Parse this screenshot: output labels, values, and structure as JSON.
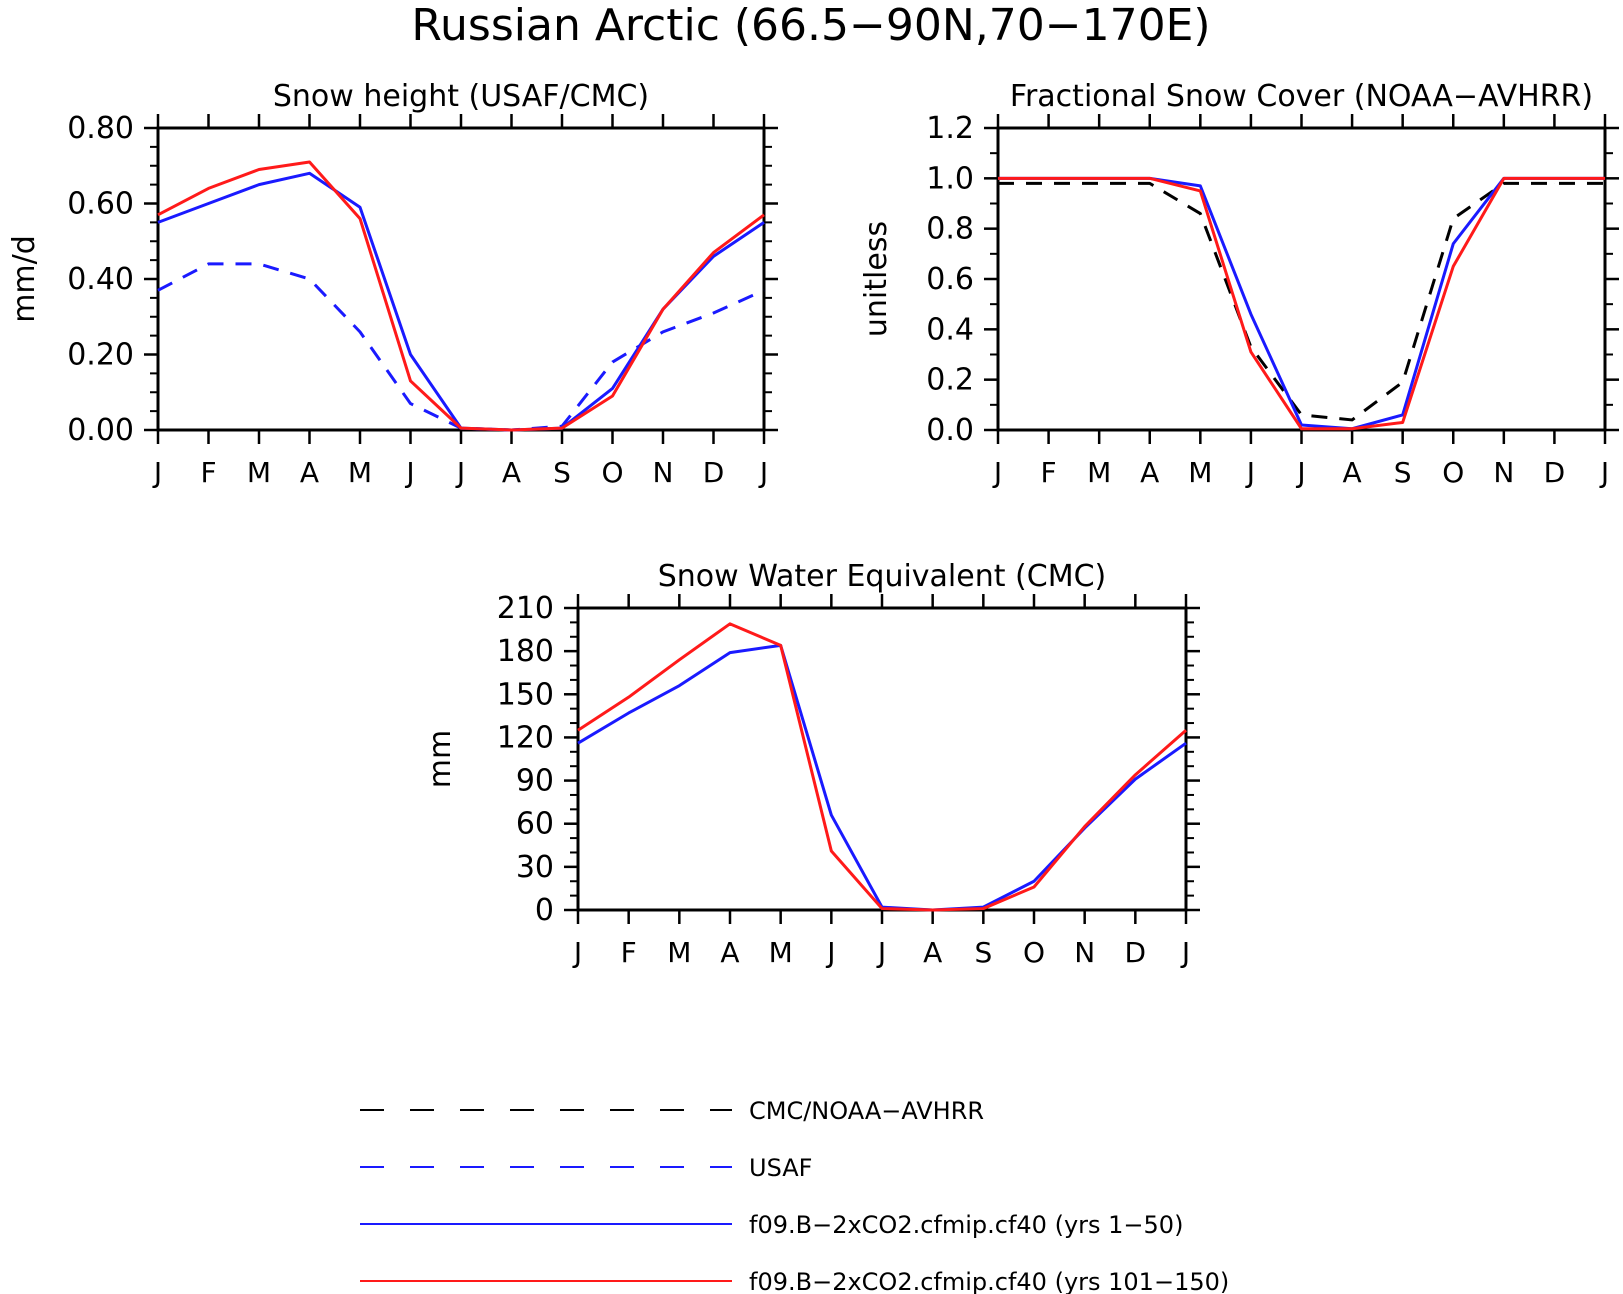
{
  "title": "Russian Arctic (66.5−90N,70−170E)",
  "colors": {
    "obs": "#000000",
    "usaf": "#1a1aff",
    "run1": "#1a1aff",
    "run2": "#ff1a1a"
  },
  "chart_data": [
    {
      "type": "line",
      "title": "Snow height (USAF/CMC)",
      "ylabel": "mm/d",
      "xlabel": "",
      "categories": [
        "J",
        "F",
        "M",
        "A",
        "M",
        "J",
        "J",
        "A",
        "S",
        "O",
        "N",
        "D",
        "J"
      ],
      "ylim": [
        0,
        0.8
      ],
      "yticks": [
        "0.00",
        "0.20",
        "0.40",
        "0.60",
        "0.80"
      ],
      "ytick_values": [
        0,
        0.2,
        0.4,
        0.6,
        0.8
      ],
      "grid": false,
      "series": [
        {
          "key": "usaf",
          "name": "USAF",
          "dashed": true,
          "values": [
            0.37,
            0.44,
            0.44,
            0.4,
            0.26,
            0.07,
            0.005,
            0.0,
            0.01,
            0.18,
            0.26,
            0.31,
            0.37
          ]
        },
        {
          "key": "run1",
          "name": "f09.B−2xCO2.cfmip.cf40 (yrs 1−50)",
          "dashed": false,
          "values": [
            0.55,
            0.6,
            0.65,
            0.68,
            0.59,
            0.2,
            0.005,
            0.0,
            0.005,
            0.11,
            0.32,
            0.46,
            0.55
          ]
        },
        {
          "key": "run2",
          "name": "f09.B−2xCO2.cfmip.cf40 (yrs 101−150)",
          "dashed": false,
          "values": [
            0.57,
            0.64,
            0.69,
            0.71,
            0.56,
            0.13,
            0.005,
            0.0,
            0.005,
            0.09,
            0.32,
            0.47,
            0.57
          ]
        }
      ]
    },
    {
      "type": "line",
      "title": "Fractional Snow Cover (NOAA−AVHRR)",
      "ylabel": "unitless",
      "xlabel": "",
      "categories": [
        "J",
        "F",
        "M",
        "A",
        "M",
        "J",
        "J",
        "A",
        "S",
        "O",
        "N",
        "D",
        "J"
      ],
      "ylim": [
        0,
        1.2
      ],
      "yticks": [
        "0.0",
        "0.2",
        "0.4",
        "0.6",
        "0.8",
        "1.0",
        "1.2"
      ],
      "ytick_values": [
        0,
        0.2,
        0.4,
        0.6,
        0.8,
        1.0,
        1.2
      ],
      "grid": false,
      "series": [
        {
          "key": "obs",
          "name": "CMC/NOAA−AVHRR",
          "dashed": true,
          "values": [
            0.98,
            0.98,
            0.98,
            0.98,
            0.86,
            0.33,
            0.06,
            0.04,
            0.19,
            0.84,
            0.98,
            0.98,
            0.98
          ]
        },
        {
          "key": "run1",
          "name": "f09.B−2xCO2.cfmip.cf40 (yrs 1−50)",
          "dashed": false,
          "values": [
            1.0,
            1.0,
            1.0,
            1.0,
            0.97,
            0.46,
            0.02,
            0.005,
            0.06,
            0.74,
            1.0,
            1.0,
            1.0
          ]
        },
        {
          "key": "run2",
          "name": "f09.B−2xCO2.cfmip.cf40 (yrs 101−150)",
          "dashed": false,
          "values": [
            1.0,
            1.0,
            1.0,
            1.0,
            0.95,
            0.31,
            0.005,
            0.005,
            0.03,
            0.65,
            1.0,
            1.0,
            1.0
          ]
        }
      ]
    },
    {
      "type": "line",
      "title": "Snow Water Equivalent (CMC)",
      "ylabel": "mm",
      "xlabel": "",
      "categories": [
        "J",
        "F",
        "M",
        "A",
        "M",
        "J",
        "J",
        "A",
        "S",
        "O",
        "N",
        "D",
        "J"
      ],
      "ylim": [
        0,
        210
      ],
      "yticks": [
        "0",
        "30",
        "60",
        "90",
        "120",
        "150",
        "180",
        "210"
      ],
      "ytick_values": [
        0,
        30,
        60,
        90,
        120,
        150,
        180,
        210
      ],
      "grid": false,
      "series": [
        {
          "key": "run1",
          "name": "f09.B−2xCO2.cfmip.cf40 (yrs 1−50)",
          "dashed": false,
          "values": [
            116,
            137,
            156,
            179,
            184,
            66,
            2,
            0,
            2,
            20,
            57,
            91,
            116
          ]
        },
        {
          "key": "run2",
          "name": "f09.B−2xCO2.cfmip.cf40 (yrs 101−150)",
          "dashed": false,
          "values": [
            125,
            148,
            174,
            199,
            184,
            41,
            1,
            0,
            1,
            16,
            58,
            94,
            125
          ]
        }
      ]
    }
  ],
  "legend": [
    {
      "key": "obs",
      "label": "CMC/NOAA−AVHRR",
      "dashed": true
    },
    {
      "key": "usaf",
      "label": "USAF",
      "dashed": true
    },
    {
      "key": "run1",
      "label": "f09.B−2xCO2.cfmip.cf40 (yrs 1−50)",
      "dashed": false
    },
    {
      "key": "run2",
      "label": "f09.B−2xCO2.cfmip.cf40 (yrs 101−150)",
      "dashed": false
    }
  ]
}
